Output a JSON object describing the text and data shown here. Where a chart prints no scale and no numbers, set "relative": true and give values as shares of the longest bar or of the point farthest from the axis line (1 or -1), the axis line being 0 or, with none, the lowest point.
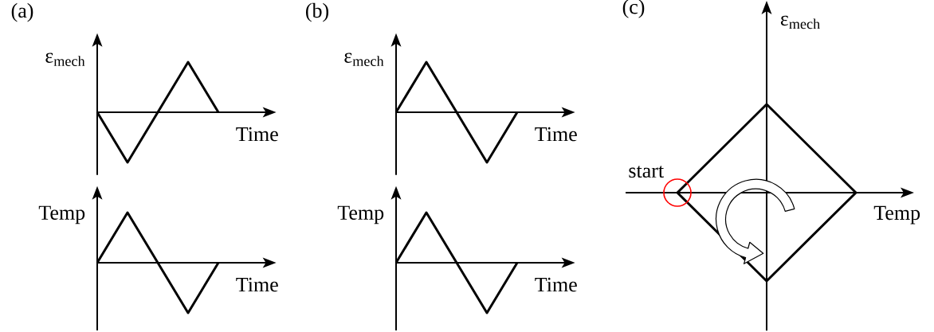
{
  "chart_data": [
    {
      "type": "line",
      "title": "(a)",
      "xlabel": "Time",
      "ylabel": "ε$_{mech}$",
      "relative": true,
      "categories": [
        null,
        null,
        null,
        null,
        null
      ],
      "series": [
        {
          "color": "#000000",
          "values": [
            0,
            -1,
            0,
            1,
            0
          ]
        }
      ]
    },
    {
      "type": "line",
      "xlabel": "Time",
      "ylabel": "Temp",
      "relative": true,
      "categories": [
        null,
        null,
        null,
        null,
        null
      ],
      "series": [
        {
          "color": "#000000",
          "values": [
            0,
            1,
            0,
            -1,
            0
          ]
        }
      ]
    },
    {
      "type": "line",
      "title": "(b)",
      "xlabel": "Time",
      "ylabel": "ε$_{mech}$",
      "relative": true,
      "categories": [
        null,
        null,
        null,
        null,
        null
      ],
      "series": [
        {
          "color": "#000000",
          "values": [
            0,
            1,
            0,
            -1,
            0
          ]
        }
      ]
    },
    {
      "type": "line",
      "xlabel": "Time",
      "ylabel": "Temp",
      "relative": true,
      "categories": [
        null,
        null,
        null,
        null,
        null
      ],
      "series": [
        {
          "color": "#000000",
          "values": [
            0,
            1,
            0,
            -1,
            0
          ]
        }
      ]
    },
    {
      "type": "line",
      "title": "(c)",
      "xlabel": "Temp",
      "ylabel": "ε$_{mech}$",
      "relative": true,
      "categories": [
        null,
        null,
        null
      ],
      "series": [
        {
          "color": "#000000",
          "values": [
            0,
            1,
            0
          ]
        },
        {
          "color": "#000000",
          "values": [
            0,
            -1,
            0
          ]
        }
      ],
      "annotations": [
        "start"
      ]
    }
  ]
}
